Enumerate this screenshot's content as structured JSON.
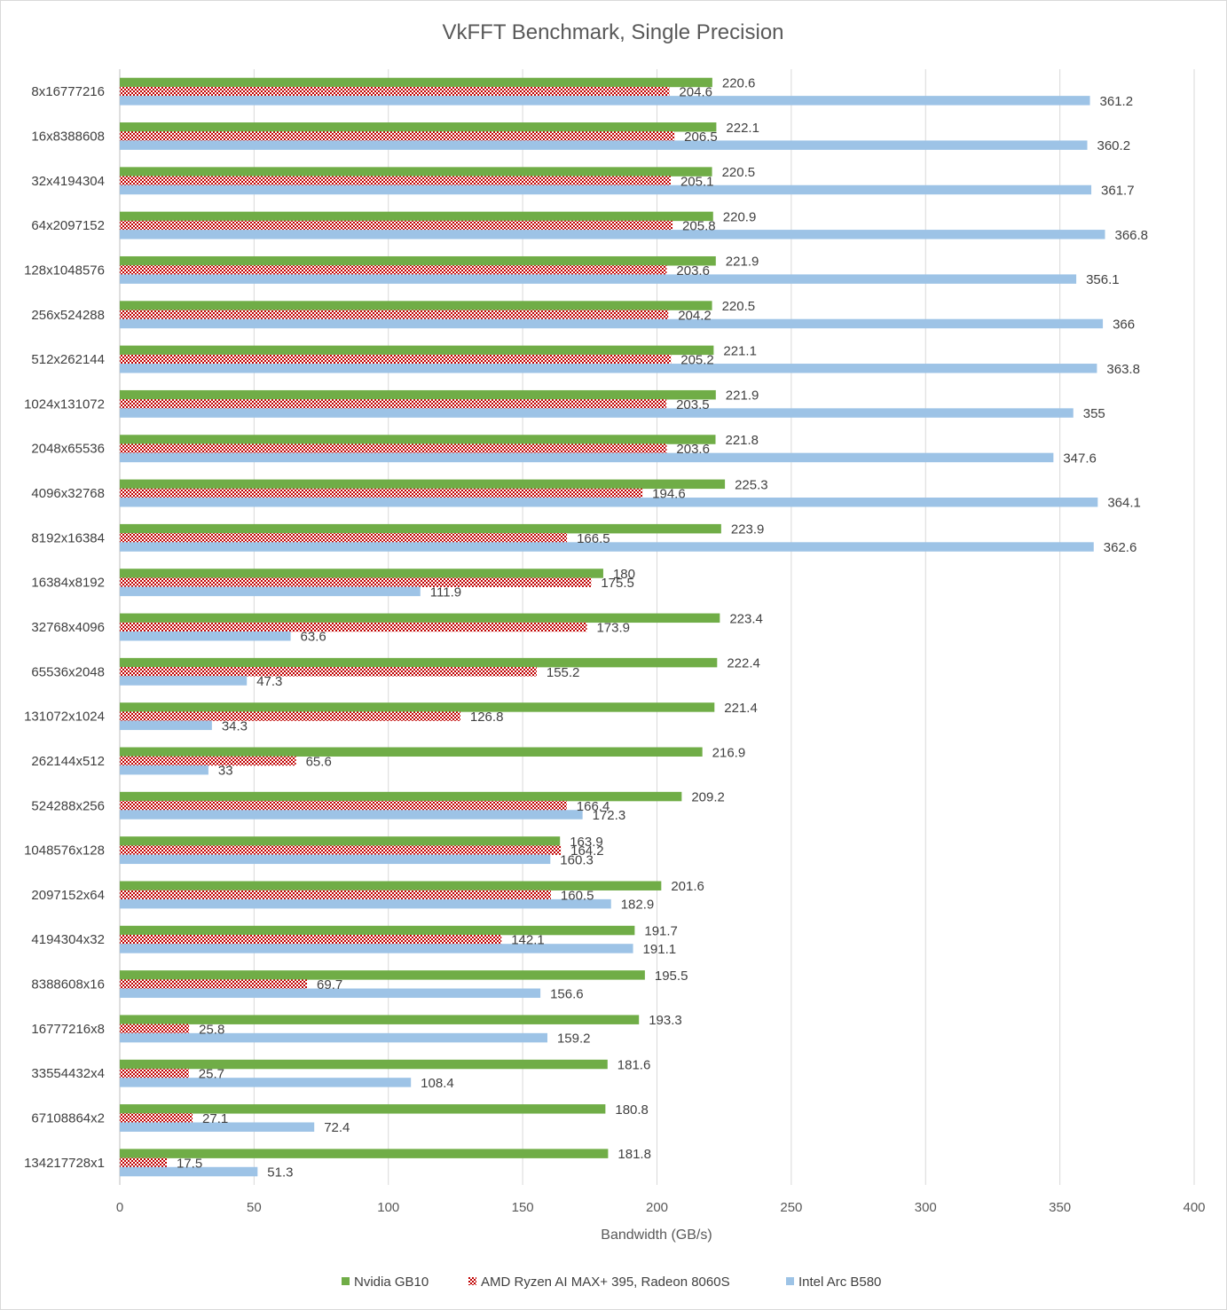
{
  "chart_data": {
    "type": "bar",
    "orientation": "horizontal",
    "title": "VkFFT Benchmark, Single Precision",
    "xlabel": "Bandwidth (GB/s)",
    "ylabel": "",
    "xlim": [
      0,
      400
    ],
    "xticks": [
      "0",
      "50",
      "100",
      "150",
      "200",
      "250",
      "300",
      "350",
      "400"
    ],
    "grid": true,
    "legend_position": "bottom",
    "categories": [
      "8x16777216",
      "16x8388608",
      "32x4194304",
      "64x2097152",
      "128x1048576",
      "256x524288",
      "512x262144",
      "1024x131072",
      "2048x65536",
      "4096x32768",
      "8192x16384",
      "16384x8192",
      "32768x4096",
      "65536x2048",
      "131072x1024",
      "262144x512",
      "524288x256",
      "1048576x128",
      "2097152x64",
      "4194304x32",
      "8388608x16",
      "16777216x8",
      "33554432x4",
      "67108864x2",
      "134217728x1"
    ],
    "series": [
      {
        "name": "Nvidia GB10",
        "color": "#70ad47",
        "pattern": "solid",
        "values": [
          220.6,
          222.1,
          220.5,
          220.9,
          221.9,
          220.5,
          221.1,
          221.9,
          221.8,
          225.3,
          223.9,
          180,
          223.4,
          222.4,
          221.4,
          216.9,
          209.2,
          163.9,
          201.6,
          191.7,
          195.5,
          193.3,
          181.6,
          180.8,
          181.8
        ],
        "labels": [
          "220.6",
          "222.1",
          "220.5",
          "220.9",
          "221.9",
          "220.5",
          "221.1",
          "221.9",
          "221.8",
          "225.3",
          "223.9",
          "180",
          "223.4",
          "222.4",
          "221.4",
          "216.9",
          "209.2",
          "163.9",
          "201.6",
          "191.7",
          "195.5",
          "193.3",
          "181.6",
          "180.8",
          "181.8"
        ]
      },
      {
        "name": "AMD Ryzen AI MAX+ 395, Radeon 8060S",
        "color": "#c00000",
        "pattern": "checker",
        "values": [
          204.6,
          206.5,
          205.1,
          205.8,
          203.6,
          204.2,
          205.2,
          203.5,
          203.6,
          194.6,
          166.5,
          175.5,
          173.9,
          155.2,
          126.8,
          65.6,
          166.4,
          164.2,
          160.5,
          142.1,
          69.7,
          25.8,
          25.7,
          27.1,
          17.5
        ],
        "labels": [
          "204.6",
          "206.5",
          "205.1",
          "205.8",
          "203.6",
          "204.2",
          "205.2",
          "203.5",
          "203.6",
          "194.6",
          "166.5",
          "175.5",
          "173.9",
          "155.2",
          "126.8",
          "65.6",
          "166.4",
          "164.2",
          "160.5",
          "142.1",
          "69.7",
          "25.8",
          "25.7",
          "27.1",
          "17.5"
        ]
      },
      {
        "name": "Intel Arc B580",
        "color": "#9dc3e6",
        "pattern": "solid",
        "values": [
          361.2,
          360.2,
          361.7,
          366.8,
          356.1,
          366,
          363.8,
          355,
          347.6,
          364.1,
          362.6,
          111.9,
          63.6,
          47.3,
          34.3,
          33,
          172.3,
          160.3,
          182.9,
          191.1,
          156.6,
          159.2,
          108.4,
          72.4,
          51.3
        ],
        "labels": [
          "361.2",
          "360.2",
          "361.7",
          "366.8",
          "356.1",
          "366",
          "363.8",
          "355",
          "347.6",
          "364.1",
          "362.6",
          "111.9",
          "63.6",
          "47.3",
          "34.3",
          "33",
          "172.3",
          "160.3",
          "182.9",
          "191.1",
          "156.6",
          "159.2",
          "108.4",
          "72.4",
          "51.3"
        ]
      }
    ]
  }
}
